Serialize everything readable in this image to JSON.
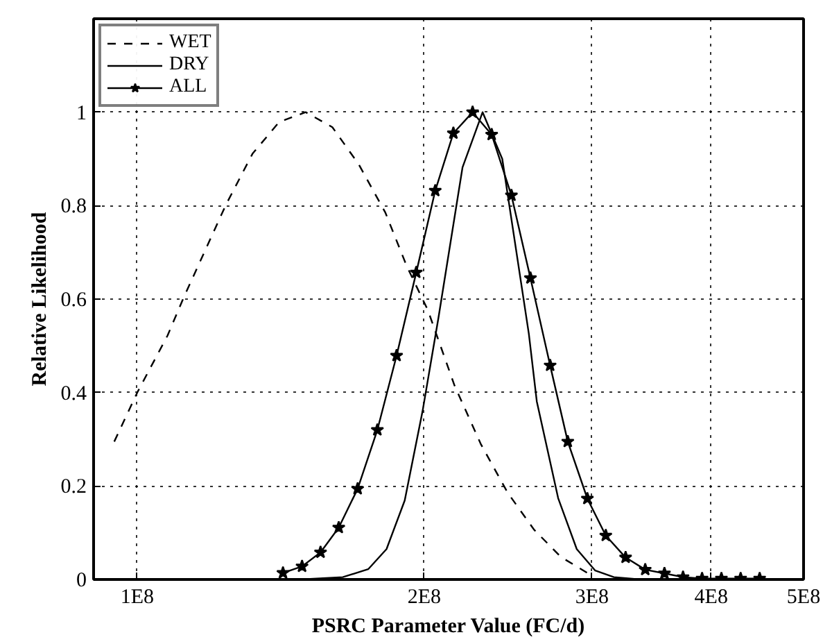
{
  "chart_data": {
    "type": "line",
    "xlabel": "PSRC Parameter Value (FC/d)",
    "ylabel": "Relative Likelihood",
    "log": "x",
    "grid": true,
    "legend": "top left",
    "xlim": [
      90000000,
      500000000
    ],
    "ylim": [
      0,
      1.2
    ],
    "xticks": [
      {
        "value": 100000000,
        "label": "1E8"
      },
      {
        "value": 200000000,
        "label": "2E8"
      },
      {
        "value": 300000000,
        "label": "3E8"
      },
      {
        "value": 400000000,
        "label": "4E8"
      },
      {
        "value": 500000000,
        "label": "5E8"
      }
    ],
    "yticks": [
      0,
      0.2,
      0.4,
      0.6,
      0.8,
      1
    ],
    "series": [
      {
        "name": "WET",
        "color": "#000000",
        "line_style": "dashed",
        "marker": "none",
        "x": [
          94600000,
          100000000,
          107600000,
          111800000,
          123900000,
          132100000,
          140900000,
          150200000,
          160200000,
          170800000,
          182100000,
          191700000,
          201800000,
          215200000,
          229400000,
          244600000,
          260900000,
          278300000,
          296600000
        ],
        "values": [
          0.295,
          0.4,
          0.522,
          0.602,
          0.802,
          0.911,
          0.979,
          1.0,
          0.968,
          0.888,
          0.785,
          0.671,
          0.576,
          0.415,
          0.289,
          0.186,
          0.106,
          0.048,
          0.014
        ]
      },
      {
        "name": "DRY",
        "color": "#000000",
        "line_style": "solid",
        "marker": "none",
        "x": [
          148300000,
          164300000,
          174700000,
          182600000,
          190800000,
          199200000,
          207000000,
          219400000,
          230300000,
          241500000,
          257500000,
          262500000,
          276400000,
          289100000,
          302300000,
          316200000,
          337200000
        ],
        "values": [
          0,
          0.005,
          0.022,
          0.065,
          0.169,
          0.36,
          0.56,
          0.882,
          1.0,
          0.9,
          0.526,
          0.381,
          0.174,
          0.065,
          0.019,
          0.005,
          0
        ]
      },
      {
        "name": "ALL",
        "color": "#000000",
        "line_style": "solid",
        "marker": "star",
        "x": [
          142200000,
          148900000,
          155700000,
          162700000,
          170300000,
          178600000,
          187100000,
          196200000,
          205400000,
          214600000,
          224800000,
          235400000,
          246900000,
          258500000,
          271100000,
          282900000,
          296600000,
          310100000,
          325300000,
          341100000,
          357300000,
          373700000,
          391300000,
          410000000,
          429500000,
          449700000
        ],
        "values": [
          0.014,
          0.028,
          0.058,
          0.111,
          0.194,
          0.32,
          0.479,
          0.657,
          0.832,
          0.955,
          1.0,
          0.952,
          0.822,
          0.645,
          0.458,
          0.295,
          0.173,
          0.094,
          0.047,
          0.021,
          0.013,
          0.005,
          0.002,
          0.002,
          0.002,
          0.002
        ]
      }
    ]
  }
}
